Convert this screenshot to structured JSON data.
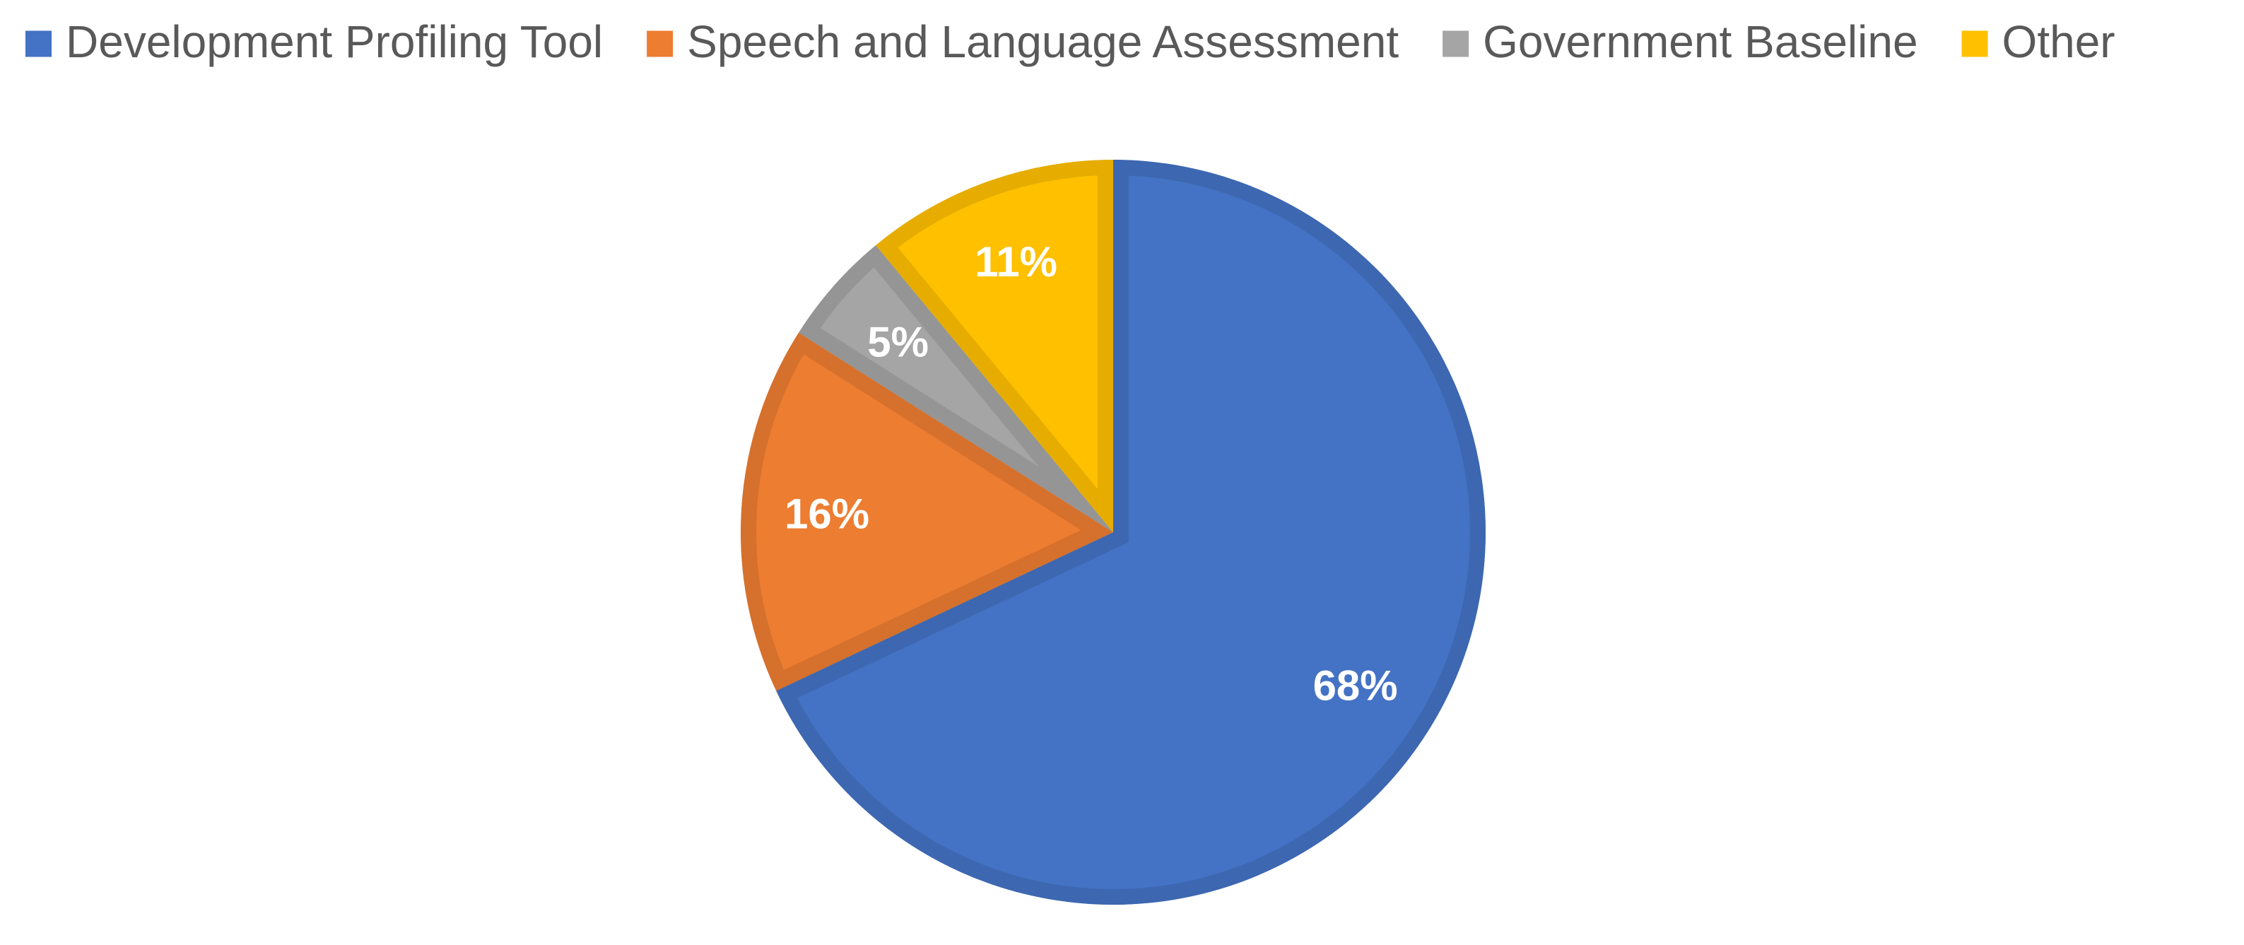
{
  "chart_data": {
    "type": "pie",
    "categories": [
      "Development Profiling Tool",
      "Speech and Language Assessment",
      "Government Baseline",
      "Other"
    ],
    "values": [
      68,
      16,
      5,
      11
    ],
    "value_labels": [
      "68%",
      "16%",
      "5%",
      "11%"
    ],
    "colors": [
      "#4472c4",
      "#ed7d31",
      "#a5a5a5",
      "#ffc000"
    ],
    "legend": "top"
  }
}
